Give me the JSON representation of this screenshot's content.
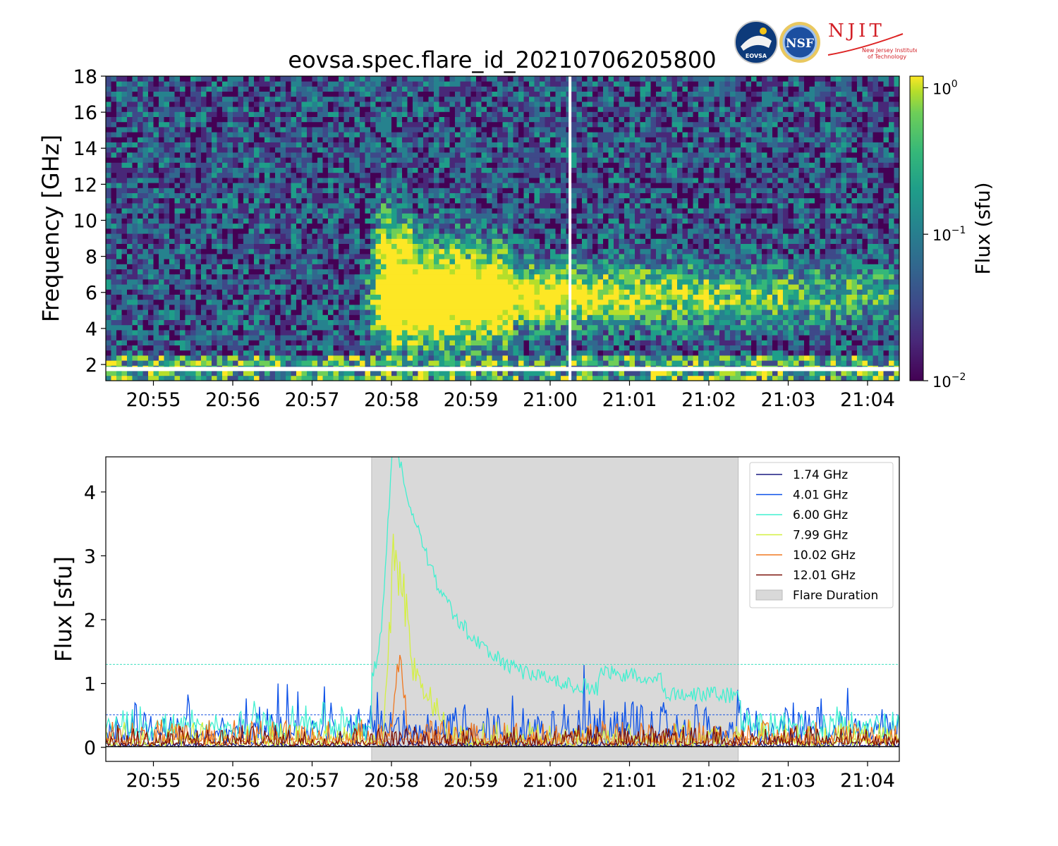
{
  "figure": {
    "title": "eovsa.spec.flare_id_20210706205800",
    "logos": {
      "eovsa": "EOVSA",
      "nsf": "NSF",
      "njit": "NJIT",
      "njit_subtitle_1": "New Jersey Institute",
      "njit_subtitle_2": "of Technology"
    }
  },
  "chart_data": [
    {
      "type": "heatmap",
      "ylabel": "Frequency [GHz]",
      "xlabel": "",
      "x_tick_labels": [
        "20:55",
        "20:56",
        "20:57",
        "20:58",
        "20:59",
        "21:00",
        "21:01",
        "21:02",
        "21:03",
        "21:04"
      ],
      "x_ticks_minutes": [
        0.6,
        1.6,
        2.6,
        3.6,
        4.6,
        5.6,
        6.6,
        7.6,
        8.6,
        9.6
      ],
      "xlim_minutes": [
        0,
        10
      ],
      "ylim": [
        1.1,
        18
      ],
      "y_ticks": [
        2,
        4,
        6,
        8,
        10,
        12,
        14,
        16,
        18
      ],
      "colormap": "viridis",
      "colorbar": {
        "label": "Flux  (sfu)",
        "scale": "log",
        "range": [
          0.01,
          1.2
        ],
        "tick_labels": [
          "10",
          "10",
          "10"
        ],
        "tick_exponents": [
          "0",
          "−1",
          "−2"
        ],
        "tick_values": [
          1,
          0.1,
          0.01
        ]
      },
      "features": {
        "flare_core_minutes": [
          3.2,
          6.0
        ],
        "peak_minute": 3.65,
        "peak_freq_range_GHz": [
          4.5,
          8.5
        ],
        "high_freq_extension_GHz": 12.5,
        "data_gap_time_minutes": 5.85,
        "data_gap_freq_GHz": 1.75
      }
    },
    {
      "type": "line",
      "ylabel": "Flux [sfu]",
      "xlabel": "",
      "x_tick_labels": [
        "20:55",
        "20:56",
        "20:57",
        "20:58",
        "20:59",
        "21:00",
        "21:01",
        "21:02",
        "21:03",
        "21:04"
      ],
      "xlim_minutes": [
        0,
        10
      ],
      "ylim": [
        -0.22,
        4.55
      ],
      "y_ticks": [
        0,
        1,
        2,
        3,
        4
      ],
      "y_tick_labels": [
        "0",
        "1",
        "2",
        "3",
        "4"
      ],
      "flare_duration_minutes": [
        3.35,
        7.97
      ],
      "threshold_lines": [
        {
          "value": 1.3,
          "color": "#40e0c0"
        },
        {
          "value": 0.51,
          "color": "#1a55e0"
        },
        {
          "value": 0.13,
          "color": "#e07020"
        }
      ],
      "series": [
        {
          "name": "1.74 GHz",
          "color": "#1a1a80",
          "baseline": 0.02,
          "noise": 0.03,
          "peak": 0.05
        },
        {
          "name": "4.01 GHz",
          "color": "#0a50e8",
          "baseline": 0.2,
          "noise": 0.18,
          "peak": 0.9
        },
        {
          "name": "6.00 GHz",
          "color": "#40f0d0",
          "baseline": 0.3,
          "noise": 0.12,
          "peak": 4.35
        },
        {
          "name": "7.99 GHz",
          "color": "#d4f040",
          "baseline": 0.05,
          "noise": 0.12,
          "peak": 3.9
        },
        {
          "name": "10.02 GHz",
          "color": "#f07820",
          "baseline": 0.08,
          "noise": 0.12,
          "peak": 1.15
        },
        {
          "name": "12.01 GHz",
          "color": "#7a1008",
          "baseline": 0.05,
          "noise": 0.1,
          "peak": 0.3
        }
      ],
      "legend": {
        "placement": "top-right",
        "shaded_label": "Flare Duration"
      }
    }
  ]
}
